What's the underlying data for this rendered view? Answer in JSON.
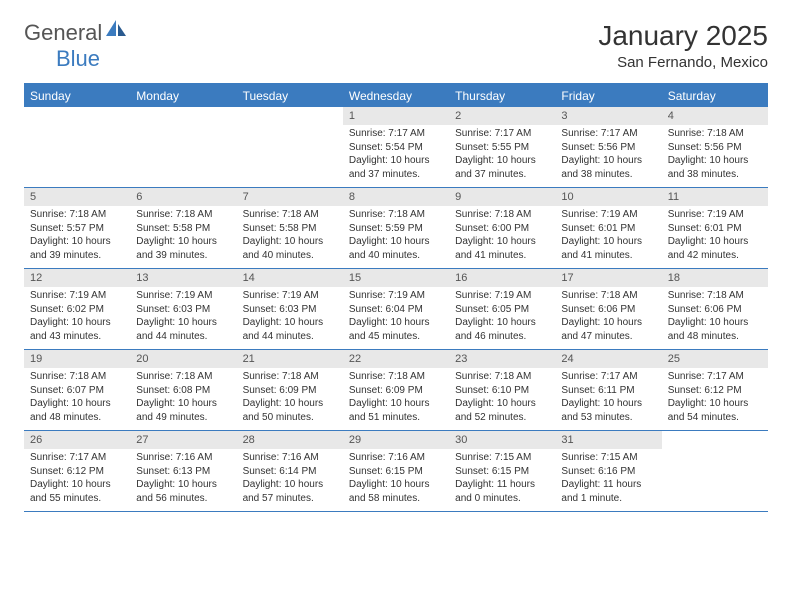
{
  "logo": {
    "part1": "General",
    "part2": "Blue"
  },
  "title": "January 2025",
  "location": "San Fernando, Mexico",
  "colors": {
    "accent": "#3b7bbf",
    "daynum_bg": "#e8e8e8",
    "text": "#333333",
    "logo_gray": "#555555",
    "logo_blue": "#3b7bbf",
    "background": "#ffffff",
    "header_text": "#ffffff"
  },
  "day_names": [
    "Sunday",
    "Monday",
    "Tuesday",
    "Wednesday",
    "Thursday",
    "Friday",
    "Saturday"
  ],
  "weeks": [
    [
      null,
      null,
      null,
      {
        "n": "1",
        "sunrise": "Sunrise: 7:17 AM",
        "sunset": "Sunset: 5:54 PM",
        "daylight1": "Daylight: 10 hours",
        "daylight2": "and 37 minutes."
      },
      {
        "n": "2",
        "sunrise": "Sunrise: 7:17 AM",
        "sunset": "Sunset: 5:55 PM",
        "daylight1": "Daylight: 10 hours",
        "daylight2": "and 37 minutes."
      },
      {
        "n": "3",
        "sunrise": "Sunrise: 7:17 AM",
        "sunset": "Sunset: 5:56 PM",
        "daylight1": "Daylight: 10 hours",
        "daylight2": "and 38 minutes."
      },
      {
        "n": "4",
        "sunrise": "Sunrise: 7:18 AM",
        "sunset": "Sunset: 5:56 PM",
        "daylight1": "Daylight: 10 hours",
        "daylight2": "and 38 minutes."
      }
    ],
    [
      {
        "n": "5",
        "sunrise": "Sunrise: 7:18 AM",
        "sunset": "Sunset: 5:57 PM",
        "daylight1": "Daylight: 10 hours",
        "daylight2": "and 39 minutes."
      },
      {
        "n": "6",
        "sunrise": "Sunrise: 7:18 AM",
        "sunset": "Sunset: 5:58 PM",
        "daylight1": "Daylight: 10 hours",
        "daylight2": "and 39 minutes."
      },
      {
        "n": "7",
        "sunrise": "Sunrise: 7:18 AM",
        "sunset": "Sunset: 5:58 PM",
        "daylight1": "Daylight: 10 hours",
        "daylight2": "and 40 minutes."
      },
      {
        "n": "8",
        "sunrise": "Sunrise: 7:18 AM",
        "sunset": "Sunset: 5:59 PM",
        "daylight1": "Daylight: 10 hours",
        "daylight2": "and 40 minutes."
      },
      {
        "n": "9",
        "sunrise": "Sunrise: 7:18 AM",
        "sunset": "Sunset: 6:00 PM",
        "daylight1": "Daylight: 10 hours",
        "daylight2": "and 41 minutes."
      },
      {
        "n": "10",
        "sunrise": "Sunrise: 7:19 AM",
        "sunset": "Sunset: 6:01 PM",
        "daylight1": "Daylight: 10 hours",
        "daylight2": "and 41 minutes."
      },
      {
        "n": "11",
        "sunrise": "Sunrise: 7:19 AM",
        "sunset": "Sunset: 6:01 PM",
        "daylight1": "Daylight: 10 hours",
        "daylight2": "and 42 minutes."
      }
    ],
    [
      {
        "n": "12",
        "sunrise": "Sunrise: 7:19 AM",
        "sunset": "Sunset: 6:02 PM",
        "daylight1": "Daylight: 10 hours",
        "daylight2": "and 43 minutes."
      },
      {
        "n": "13",
        "sunrise": "Sunrise: 7:19 AM",
        "sunset": "Sunset: 6:03 PM",
        "daylight1": "Daylight: 10 hours",
        "daylight2": "and 44 minutes."
      },
      {
        "n": "14",
        "sunrise": "Sunrise: 7:19 AM",
        "sunset": "Sunset: 6:03 PM",
        "daylight1": "Daylight: 10 hours",
        "daylight2": "and 44 minutes."
      },
      {
        "n": "15",
        "sunrise": "Sunrise: 7:19 AM",
        "sunset": "Sunset: 6:04 PM",
        "daylight1": "Daylight: 10 hours",
        "daylight2": "and 45 minutes."
      },
      {
        "n": "16",
        "sunrise": "Sunrise: 7:19 AM",
        "sunset": "Sunset: 6:05 PM",
        "daylight1": "Daylight: 10 hours",
        "daylight2": "and 46 minutes."
      },
      {
        "n": "17",
        "sunrise": "Sunrise: 7:18 AM",
        "sunset": "Sunset: 6:06 PM",
        "daylight1": "Daylight: 10 hours",
        "daylight2": "and 47 minutes."
      },
      {
        "n": "18",
        "sunrise": "Sunrise: 7:18 AM",
        "sunset": "Sunset: 6:06 PM",
        "daylight1": "Daylight: 10 hours",
        "daylight2": "and 48 minutes."
      }
    ],
    [
      {
        "n": "19",
        "sunrise": "Sunrise: 7:18 AM",
        "sunset": "Sunset: 6:07 PM",
        "daylight1": "Daylight: 10 hours",
        "daylight2": "and 48 minutes."
      },
      {
        "n": "20",
        "sunrise": "Sunrise: 7:18 AM",
        "sunset": "Sunset: 6:08 PM",
        "daylight1": "Daylight: 10 hours",
        "daylight2": "and 49 minutes."
      },
      {
        "n": "21",
        "sunrise": "Sunrise: 7:18 AM",
        "sunset": "Sunset: 6:09 PM",
        "daylight1": "Daylight: 10 hours",
        "daylight2": "and 50 minutes."
      },
      {
        "n": "22",
        "sunrise": "Sunrise: 7:18 AM",
        "sunset": "Sunset: 6:09 PM",
        "daylight1": "Daylight: 10 hours",
        "daylight2": "and 51 minutes."
      },
      {
        "n": "23",
        "sunrise": "Sunrise: 7:18 AM",
        "sunset": "Sunset: 6:10 PM",
        "daylight1": "Daylight: 10 hours",
        "daylight2": "and 52 minutes."
      },
      {
        "n": "24",
        "sunrise": "Sunrise: 7:17 AM",
        "sunset": "Sunset: 6:11 PM",
        "daylight1": "Daylight: 10 hours",
        "daylight2": "and 53 minutes."
      },
      {
        "n": "25",
        "sunrise": "Sunrise: 7:17 AM",
        "sunset": "Sunset: 6:12 PM",
        "daylight1": "Daylight: 10 hours",
        "daylight2": "and 54 minutes."
      }
    ],
    [
      {
        "n": "26",
        "sunrise": "Sunrise: 7:17 AM",
        "sunset": "Sunset: 6:12 PM",
        "daylight1": "Daylight: 10 hours",
        "daylight2": "and 55 minutes."
      },
      {
        "n": "27",
        "sunrise": "Sunrise: 7:16 AM",
        "sunset": "Sunset: 6:13 PM",
        "daylight1": "Daylight: 10 hours",
        "daylight2": "and 56 minutes."
      },
      {
        "n": "28",
        "sunrise": "Sunrise: 7:16 AM",
        "sunset": "Sunset: 6:14 PM",
        "daylight1": "Daylight: 10 hours",
        "daylight2": "and 57 minutes."
      },
      {
        "n": "29",
        "sunrise": "Sunrise: 7:16 AM",
        "sunset": "Sunset: 6:15 PM",
        "daylight1": "Daylight: 10 hours",
        "daylight2": "and 58 minutes."
      },
      {
        "n": "30",
        "sunrise": "Sunrise: 7:15 AM",
        "sunset": "Sunset: 6:15 PM",
        "daylight1": "Daylight: 11 hours",
        "daylight2": "and 0 minutes."
      },
      {
        "n": "31",
        "sunrise": "Sunrise: 7:15 AM",
        "sunset": "Sunset: 6:16 PM",
        "daylight1": "Daylight: 11 hours",
        "daylight2": "and 1 minute."
      },
      null
    ]
  ]
}
